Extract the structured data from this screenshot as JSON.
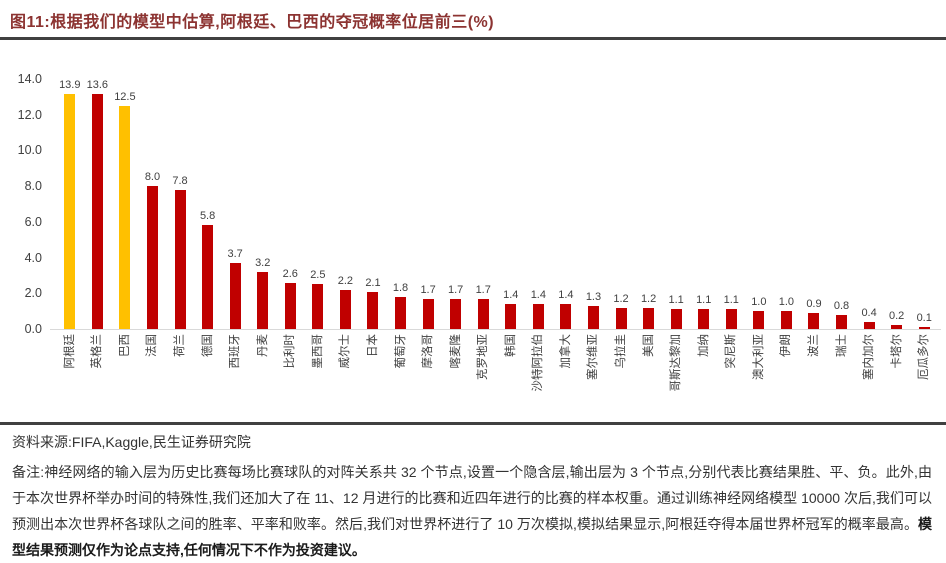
{
  "figure": {
    "title": "图11:根据我们的模型中估算,阿根廷、巴西的夺冠概率位居前三(%)"
  },
  "chart_data": {
    "type": "bar",
    "title": "根据我们的模型中估算,阿根廷、巴西的夺冠概率位居前三",
    "unit": "%",
    "categories": [
      "阿根廷",
      "英格兰",
      "巴西",
      "法国",
      "荷兰",
      "德国",
      "西班牙",
      "丹麦",
      "比利时",
      "墨西哥",
      "威尔士",
      "日本",
      "葡萄牙",
      "摩洛哥",
      "喀麦隆",
      "克罗地亚",
      "韩国",
      "沙特阿拉伯",
      "加拿大",
      "塞尔维亚",
      "乌拉圭",
      "美国",
      "哥斯达黎加",
      "加纳",
      "突尼斯",
      "澳大利亚",
      "伊朗",
      "波兰",
      "瑞士",
      "塞内加尔",
      "卡塔尔",
      "厄瓜多尔"
    ],
    "values": [
      13.9,
      13.6,
      12.5,
      8.0,
      7.8,
      5.8,
      3.7,
      3.2,
      2.6,
      2.5,
      2.2,
      2.1,
      1.8,
      1.7,
      1.7,
      1.7,
      1.4,
      1.4,
      1.4,
      1.3,
      1.2,
      1.2,
      1.1,
      1.1,
      1.1,
      1.0,
      1.0,
      0.9,
      0.8,
      0.4,
      0.2,
      0.1
    ],
    "highlight_indices": [
      0,
      2
    ],
    "bar_color": "#C00000",
    "highlight_color": "#FFC000",
    "y_ticks": [
      "14.0",
      "12.0",
      "10.0",
      "8.0",
      "6.0",
      "4.0",
      "2.0",
      "0.0"
    ],
    "ylim": [
      0,
      14
    ],
    "grid": false,
    "legend": false,
    "value_labels": true,
    "xlabel": "",
    "ylabel": ""
  },
  "footer": {
    "source": "资料来源:FIFA,Kaggle,民生证券研究院",
    "note": "备注:神经网络的输入层为历史比赛每场比赛球队的对阵关系共 32 个节点,设置一个隐含层,输出层为 3 个节点,分别代表比赛结果胜、平、负。此外,由于本次世界杯举办时间的特殊性,我们还加大了在 11、12 月进行的比赛和近四年进行的比赛的样本权重。通过训练神经网络模型 10000 次后,我们可以预测出本次世界杯各球队之间的胜率、平率和败率。然后,我们对世界杯进行了 10 万次模拟,模拟结果显示,阿根廷夺得本届世界杯冠军的概率最高。",
    "note_bold": "模型结果预测仅作为论点支持,任何情况下不作为投资建议。"
  }
}
